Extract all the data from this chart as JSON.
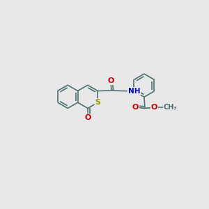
{
  "bg_color": "#e8e8e8",
  "bond_color": "#4a7070",
  "bond_width": 1.2,
  "S_color": "#999900",
  "N_color": "#0000bb",
  "O_color": "#cc0000",
  "font_size": 7.5,
  "fig_size": [
    3.0,
    3.0
  ],
  "dpi": 100,
  "xlim": [
    0,
    10
  ],
  "ylim": [
    0,
    10
  ],
  "R": 0.72
}
